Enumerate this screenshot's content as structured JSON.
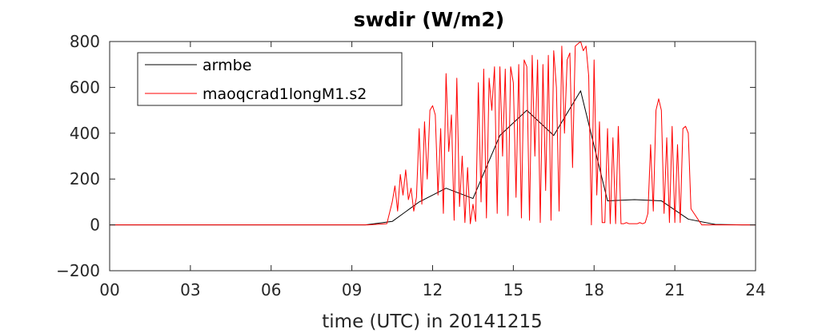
{
  "chart_data": {
    "type": "line",
    "title": "swdir  (W/m2)",
    "xlabel": "time (UTC) in 20141215",
    "ylabel": "",
    "xlim": [
      0,
      24
    ],
    "ylim": [
      -200,
      800
    ],
    "x_ticks": [
      0,
      3,
      6,
      9,
      12,
      15,
      18,
      21,
      24
    ],
    "x_tick_labels": [
      "00",
      "03",
      "06",
      "09",
      "12",
      "15",
      "18",
      "21",
      "24"
    ],
    "y_ticks": [
      -200,
      0,
      200,
      400,
      600,
      800
    ],
    "y_tick_labels": [
      "−200",
      "0",
      "200",
      "400",
      "600",
      "800"
    ],
    "grid": false,
    "legend_position": "top-left",
    "colors": {
      "armbe": "#000000",
      "maoqcrad1longM1.s2": "#ff0000",
      "axis": "#262626"
    },
    "series": [
      {
        "name": "armbe",
        "color": "#000000",
        "x": [
          0,
          1,
          2,
          3,
          4,
          5,
          6,
          7,
          8,
          9,
          9.5,
          10.5,
          11.5,
          12.5,
          13.5,
          14.5,
          15.5,
          16.5,
          17.5,
          18.5,
          19.5,
          20.5,
          21.5,
          22.5,
          23.5,
          24
        ],
        "y": [
          0,
          0,
          0,
          0,
          0,
          0,
          0,
          0,
          0,
          0,
          0,
          15,
          100,
          160,
          115,
          390,
          500,
          390,
          585,
          105,
          110,
          105,
          25,
          2,
          0,
          0
        ]
      },
      {
        "name": "maoqcrad1longM1.s2",
        "color": "#ff0000",
        "x": [
          0,
          9.6,
          10.3,
          10.5,
          10.6,
          10.7,
          10.8,
          10.9,
          11.0,
          11.1,
          11.2,
          11.3,
          11.4,
          11.5,
          11.6,
          11.7,
          11.8,
          11.9,
          12.0,
          12.1,
          12.2,
          12.3,
          12.4,
          12.5,
          12.6,
          12.7,
          12.8,
          12.9,
          13.0,
          13.1,
          13.2,
          13.3,
          13.4,
          13.5,
          13.6,
          13.7,
          13.8,
          13.9,
          14.0,
          14.1,
          14.2,
          14.3,
          14.4,
          14.5,
          14.6,
          14.7,
          14.8,
          14.9,
          15.0,
          15.1,
          15.2,
          15.3,
          15.4,
          15.5,
          15.6,
          15.7,
          15.8,
          15.9,
          16.0,
          16.1,
          16.2,
          16.3,
          16.4,
          16.5,
          16.6,
          16.7,
          16.8,
          16.9,
          17.0,
          17.1,
          17.2,
          17.3,
          17.4,
          17.5,
          17.6,
          17.7,
          17.8,
          17.9,
          18.0,
          18.1,
          18.2,
          18.3,
          18.4,
          18.5,
          18.6,
          18.7,
          18.8,
          18.9,
          19.0,
          19.1,
          19.2,
          19.3,
          19.4,
          19.5,
          19.6,
          19.7,
          19.8,
          19.9,
          20.0,
          20.1,
          20.2,
          20.3,
          20.4,
          20.5,
          20.6,
          20.7,
          20.8,
          20.9,
          21.0,
          21.1,
          21.2,
          21.3,
          21.4,
          21.5,
          21.6,
          22.0,
          24
        ],
        "y": [
          0,
          0,
          5,
          100,
          170,
          60,
          220,
          130,
          240,
          110,
          160,
          60,
          120,
          420,
          90,
          450,
          200,
          500,
          520,
          480,
          130,
          420,
          50,
          660,
          320,
          480,
          20,
          640,
          80,
          300,
          10,
          250,
          5,
          90,
          15,
          620,
          100,
          680,
          30,
          640,
          500,
          690,
          50,
          690,
          300,
          680,
          40,
          690,
          620,
          120,
          700,
          30,
          720,
          690,
          20,
          740,
          300,
          720,
          10,
          700,
          150,
          740,
          20,
          760,
          600,
          60,
          780,
          400,
          720,
          750,
          250,
          780,
          790,
          800,
          760,
          780,
          650,
          0,
          720,
          130,
          450,
          10,
          10,
          420,
          5,
          380,
          5,
          430,
          5,
          5,
          10,
          5,
          5,
          5,
          5,
          10,
          5,
          10,
          50,
          350,
          60,
          500,
          550,
          500,
          50,
          380,
          10,
          430,
          10,
          350,
          10,
          420,
          430,
          400,
          70,
          0,
          0
        ]
      }
    ]
  }
}
